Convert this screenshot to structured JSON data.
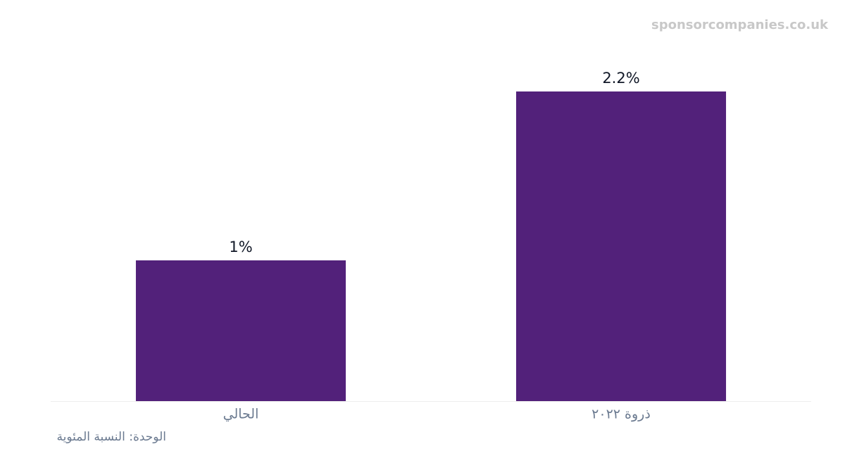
{
  "chart_data": {
    "type": "bar",
    "watermark": "sponsorcompanies.co.uk",
    "note": "الوحدة: النسبة المئوية",
    "categories": [
      "الحالي",
      "ذروة ٢٠٢٢"
    ],
    "values": [
      1,
      2.2
    ],
    "value_labels": [
      "1%",
      "2.2%"
    ],
    "color": "#52217a"
  }
}
